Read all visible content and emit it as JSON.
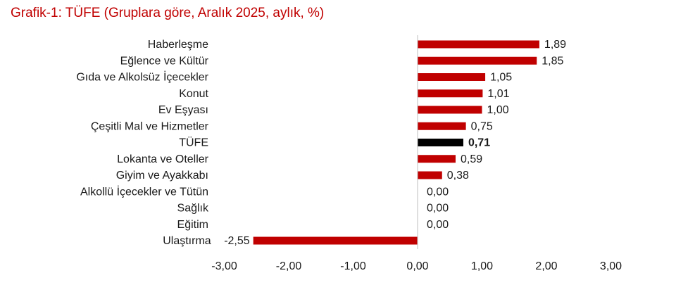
{
  "chart_data": {
    "type": "bar",
    "orientation": "horizontal",
    "title": "Grafik-1: TÜFE (Gruplara göre, Aralık 2025, aylık, %)",
    "categories": [
      "Haberleşme",
      "Eğlence ve Kültür",
      "Gıda ve Alkolsüz İçecekler",
      "Konut",
      "Ev Eşyası",
      "Çeşitli Mal ve Hizmetler",
      "TÜFE",
      "Lokanta ve Oteller",
      "Giyim ve Ayakkabı",
      "Alkollü İçecekler ve Tütün",
      "Sağlık",
      "Eğitim",
      "Ulaştırma"
    ],
    "values": [
      1.89,
      1.85,
      1.05,
      1.01,
      1.0,
      0.75,
      0.71,
      0.59,
      0.38,
      0.0,
      0.0,
      0.0,
      -2.55
    ],
    "value_labels": [
      "1,89",
      "1,85",
      "1,05",
      "1,01",
      "1,00",
      "0,75",
      "0,71",
      "0,59",
      "0,38",
      "0,00",
      "0,00",
      "0,00",
      "-2,55"
    ],
    "highlight_category": "TÜFE",
    "xlim": [
      -3,
      3
    ],
    "xticks": [
      -3,
      -2,
      -1,
      0,
      1,
      2,
      3
    ],
    "xtick_labels": [
      "-3,00",
      "-2,00",
      "-1,00",
      "0,00",
      "1,00",
      "2,00",
      "3,00"
    ],
    "grid": false,
    "colors": {
      "bar": "#c00000",
      "highlight_bar": "#000000",
      "title": "#c00000",
      "axis": "#bfbfbf"
    }
  }
}
